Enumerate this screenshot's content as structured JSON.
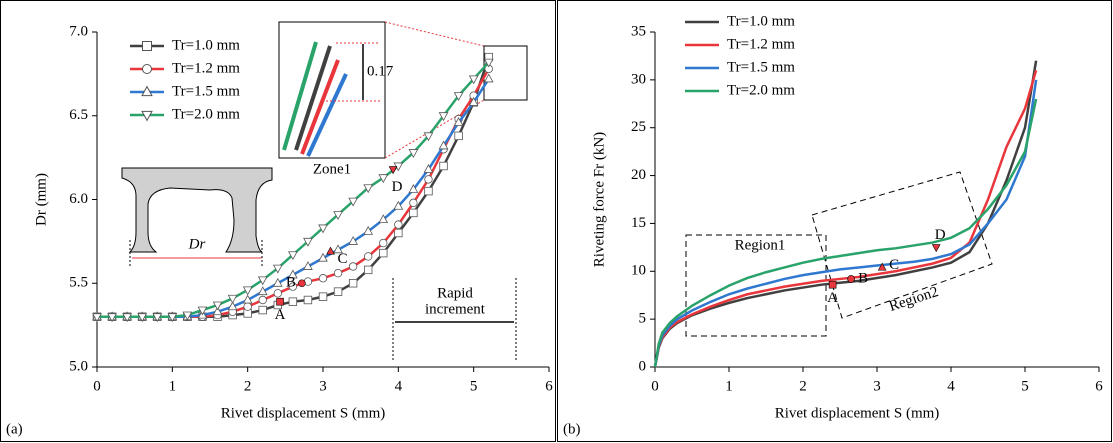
{
  "chart_data": [
    {
      "type": "line",
      "panel_label": "(a)",
      "x_label": "Rivet displacement S (mm)",
      "y_label": "Dr (mm)",
      "xlim": [
        0,
        6
      ],
      "ylim": [
        5,
        7
      ],
      "xticks": [
        0,
        1,
        2,
        3,
        4,
        5,
        6
      ],
      "yticks": [
        {
          "value": 5,
          "label": "5.0"
        },
        {
          "value": 5.5,
          "label": "5.5"
        },
        {
          "value": 6,
          "label": "6.0"
        },
        {
          "value": 6.5,
          "label": "6.5"
        },
        {
          "value": 7,
          "label": "7.0"
        }
      ],
      "x": [
        0,
        0.2,
        0.4,
        0.6,
        0.8,
        1.0,
        1.2,
        1.4,
        1.6,
        1.8,
        2.0,
        2.2,
        2.4,
        2.6,
        2.8,
        3.0,
        3.2,
        3.4,
        3.6,
        3.8,
        4.0,
        4.2,
        4.4,
        4.6,
        4.8,
        5.0,
        5.2
      ],
      "series": [
        {
          "name": "Tr=1.0 mm",
          "color": "#404040",
          "marker": "square",
          "values": [
            5.3,
            5.3,
            5.3,
            5.3,
            5.3,
            5.3,
            5.3,
            5.3,
            5.3,
            5.31,
            5.32,
            5.34,
            5.37,
            5.39,
            5.4,
            5.42,
            5.45,
            5.5,
            5.58,
            5.68,
            5.8,
            5.92,
            6.05,
            6.2,
            6.38,
            6.58,
            6.85
          ]
        },
        {
          "name": "Tr=1.2 mm",
          "color": "#e8363c",
          "marker": "circle",
          "values": [
            5.3,
            5.3,
            5.3,
            5.3,
            5.3,
            5.3,
            5.3,
            5.3,
            5.31,
            5.33,
            5.36,
            5.4,
            5.44,
            5.48,
            5.51,
            5.53,
            5.56,
            5.6,
            5.66,
            5.74,
            5.85,
            5.98,
            6.12,
            6.3,
            6.48,
            6.62,
            6.78
          ]
        },
        {
          "name": "Tr=1.5 mm",
          "color": "#2f78d0",
          "marker": "triangle",
          "values": [
            5.3,
            5.3,
            5.3,
            5.3,
            5.3,
            5.3,
            5.3,
            5.31,
            5.33,
            5.36,
            5.4,
            5.45,
            5.5,
            5.55,
            5.6,
            5.65,
            5.7,
            5.75,
            5.81,
            5.88,
            5.96,
            6.06,
            6.18,
            6.32,
            6.46,
            6.58,
            6.72
          ]
        },
        {
          "name": "Tr=2.0 mm",
          "color": "#2aa36b",
          "marker": "triangle-down",
          "values": [
            5.3,
            5.3,
            5.3,
            5.3,
            5.3,
            5.3,
            5.31,
            5.34,
            5.37,
            5.41,
            5.46,
            5.52,
            5.59,
            5.67,
            5.75,
            5.83,
            5.91,
            5.99,
            6.07,
            6.13,
            6.2,
            6.28,
            6.38,
            6.5,
            6.62,
            6.72,
            6.82
          ]
        }
      ],
      "annotations": [
        {
          "text": "A",
          "x": 2.43,
          "y": 5.39,
          "color": "#000000",
          "marker": "square"
        },
        {
          "text": "B",
          "x": 2.72,
          "y": 5.5,
          "color": "#e8363c",
          "marker": "circle"
        },
        {
          "text": "C",
          "x": 3.1,
          "y": 5.69,
          "color": "#2f78d0",
          "marker": "triangle"
        },
        {
          "text": "D",
          "x": 3.93,
          "y": 6.18,
          "color": "#2aa36b",
          "marker": "triangle-down"
        }
      ],
      "notes": [
        "Rapid",
        "increment",
        "Zone1",
        "0.17",
        "Dr"
      ]
    },
    {
      "type": "line",
      "panel_label": "(b)",
      "x_label": "Rivet displacement S (mm)",
      "y_label": "Riveting force Fr (kN)",
      "xlim": [
        0,
        6
      ],
      "ylim": [
        0,
        35
      ],
      "xticks": [
        0,
        1,
        2,
        3,
        4,
        5,
        6
      ],
      "yticks": [
        0,
        5,
        10,
        15,
        20,
        25,
        30,
        35
      ],
      "x": [
        0,
        0.05,
        0.1,
        0.2,
        0.3,
        0.5,
        0.75,
        1,
        1.25,
        1.5,
        1.75,
        2,
        2.25,
        2.5,
        2.75,
        3,
        3.25,
        3.5,
        3.75,
        4,
        4.25,
        4.5,
        4.75,
        5,
        5.15
      ],
      "series": [
        {
          "name": "Tr=1.0 mm",
          "color": "#404040",
          "values": [
            0,
            2,
            3,
            4,
            4.6,
            5.4,
            6.1,
            6.7,
            7.2,
            7.6,
            8.0,
            8.3,
            8.6,
            8.8,
            9.0,
            9.3,
            9.6,
            10.0,
            10.4,
            10.9,
            12.0,
            15,
            19.5,
            25,
            32
          ]
        },
        {
          "name": "Tr=1.2 mm",
          "color": "#e8363c",
          "values": [
            0,
            2.1,
            3.1,
            4.1,
            4.7,
            5.5,
            6.3,
            7.0,
            7.6,
            8.0,
            8.4,
            8.7,
            9.0,
            9.2,
            9.4,
            9.7,
            10.0,
            10.4,
            10.8,
            11.4,
            13,
            17.5,
            23,
            27,
            31
          ]
        },
        {
          "name": "Tr=1.5 mm",
          "color": "#2f78d0",
          "values": [
            0,
            2.2,
            3.3,
            4.3,
            5.0,
            5.9,
            6.8,
            7.6,
            8.2,
            8.7,
            9.2,
            9.6,
            9.9,
            10.2,
            10.4,
            10.6,
            10.8,
            11.0,
            11.3,
            11.8,
            12.8,
            15,
            17.5,
            22,
            30
          ]
        },
        {
          "name": "Tr=2.0 mm",
          "color": "#2aa36b",
          "values": [
            0,
            2.4,
            3.6,
            4.6,
            5.3,
            6.4,
            7.5,
            8.5,
            9.3,
            9.9,
            10.4,
            10.9,
            11.3,
            11.6,
            11.9,
            12.2,
            12.4,
            12.7,
            13.0,
            13.5,
            14.5,
            16.5,
            19,
            22.5,
            28
          ]
        }
      ],
      "annotations": [
        {
          "text": "A",
          "x": 2.4,
          "y": 8.6,
          "color": "#000000",
          "marker": "square"
        },
        {
          "text": "B",
          "x": 2.65,
          "y": 9.2,
          "color": "#e8363c",
          "marker": "circle"
        },
        {
          "text": "C",
          "x": 3.07,
          "y": 10.4,
          "color": "#2f78d0",
          "marker": "triangle"
        },
        {
          "text": "D",
          "x": 3.8,
          "y": 12.5,
          "color": "#2aa36b",
          "marker": "triangle-down"
        }
      ],
      "notes": [
        "Region1",
        "Region2"
      ]
    }
  ]
}
